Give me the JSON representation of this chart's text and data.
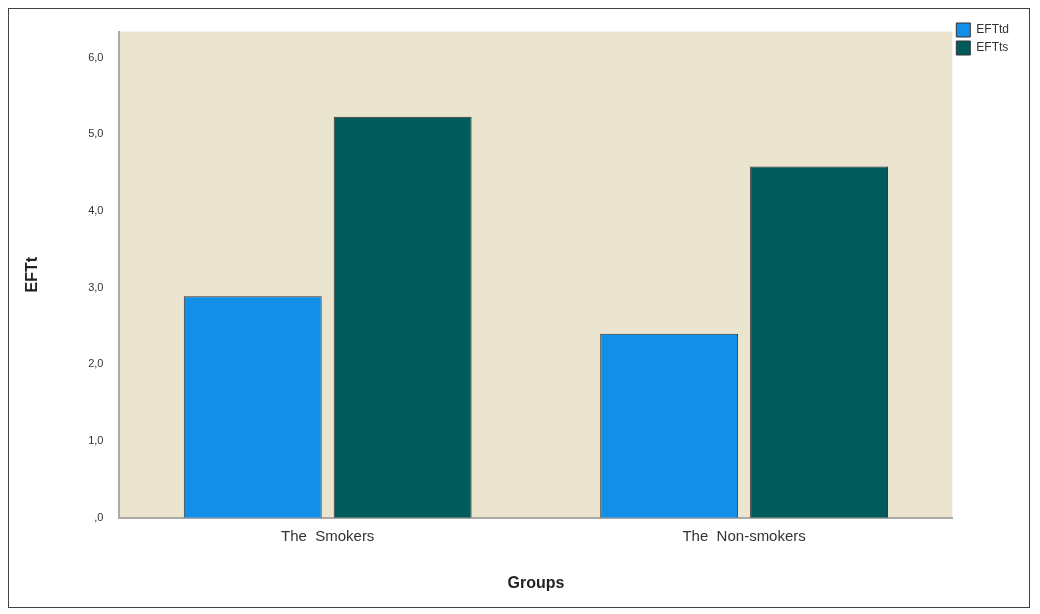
{
  "chart_data": {
    "type": "bar",
    "xlabel": "Groups",
    "ylabel": "EFTt",
    "categories": [
      "The  Smokers",
      "The  Non-smokers"
    ],
    "series": [
      {
        "name": "EFTtd",
        "color": "#128fe6",
        "values": [
          2.89,
          2.4
        ]
      },
      {
        "name": "EFTts",
        "color": "#005c5a",
        "values": [
          5.23,
          4.58
        ]
      }
    ],
    "ylim": [
      0,
      6.34
    ],
    "yticks": [
      {
        "value": 0,
        "label": ",0"
      },
      {
        "value": 1,
        "label": "1,0"
      },
      {
        "value": 2,
        "label": "2,0"
      },
      {
        "value": 3,
        "label": "3,0"
      },
      {
        "value": 4,
        "label": "4,0"
      },
      {
        "value": 5,
        "label": "5,0"
      },
      {
        "value": 6,
        "label": "6,0"
      }
    ],
    "grid": false,
    "legend": "top right"
  }
}
